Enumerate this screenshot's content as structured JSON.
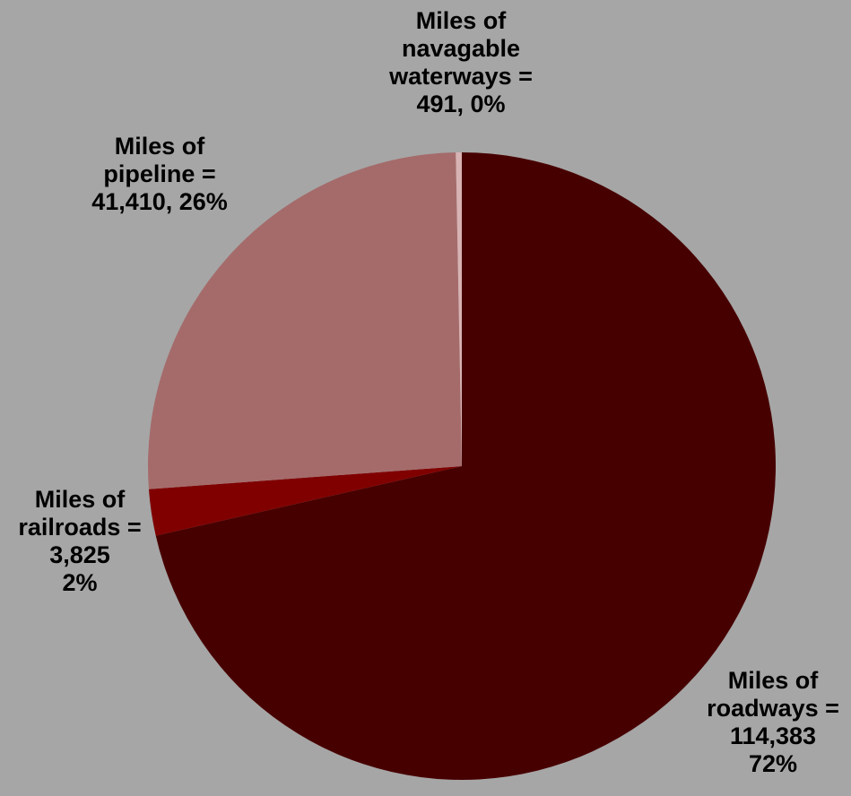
{
  "chart_data": {
    "type": "pie",
    "title": "",
    "start_angle_deg": 0,
    "direction": "clockwise",
    "slices": [
      {
        "name": "Miles of roadways",
        "value": 114383,
        "percent_label": "72%",
        "color": "#470000",
        "label_lines": [
          "Miles of",
          "roadways =",
          "114,383",
          "72%"
        ]
      },
      {
        "name": "Miles of railroads",
        "value": 3825,
        "percent_label": "2%",
        "color": "#800000",
        "label_lines": [
          "Miles of",
          "railroads =",
          "3,825",
          "2%"
        ]
      },
      {
        "name": "Miles of pipeline",
        "value": 41410,
        "percent_label": "26%",
        "color": "#a56b6b",
        "label_lines": [
          "Miles of",
          "pipeline =",
          "41,410, 26%"
        ]
      },
      {
        "name": "Miles of navagable waterways",
        "value": 491,
        "percent_label": "0%",
        "color": "#d8b3b3",
        "label_lines": [
          "Miles of",
          "navagable",
          "waterways =",
          "491, 0%"
        ]
      }
    ]
  }
}
